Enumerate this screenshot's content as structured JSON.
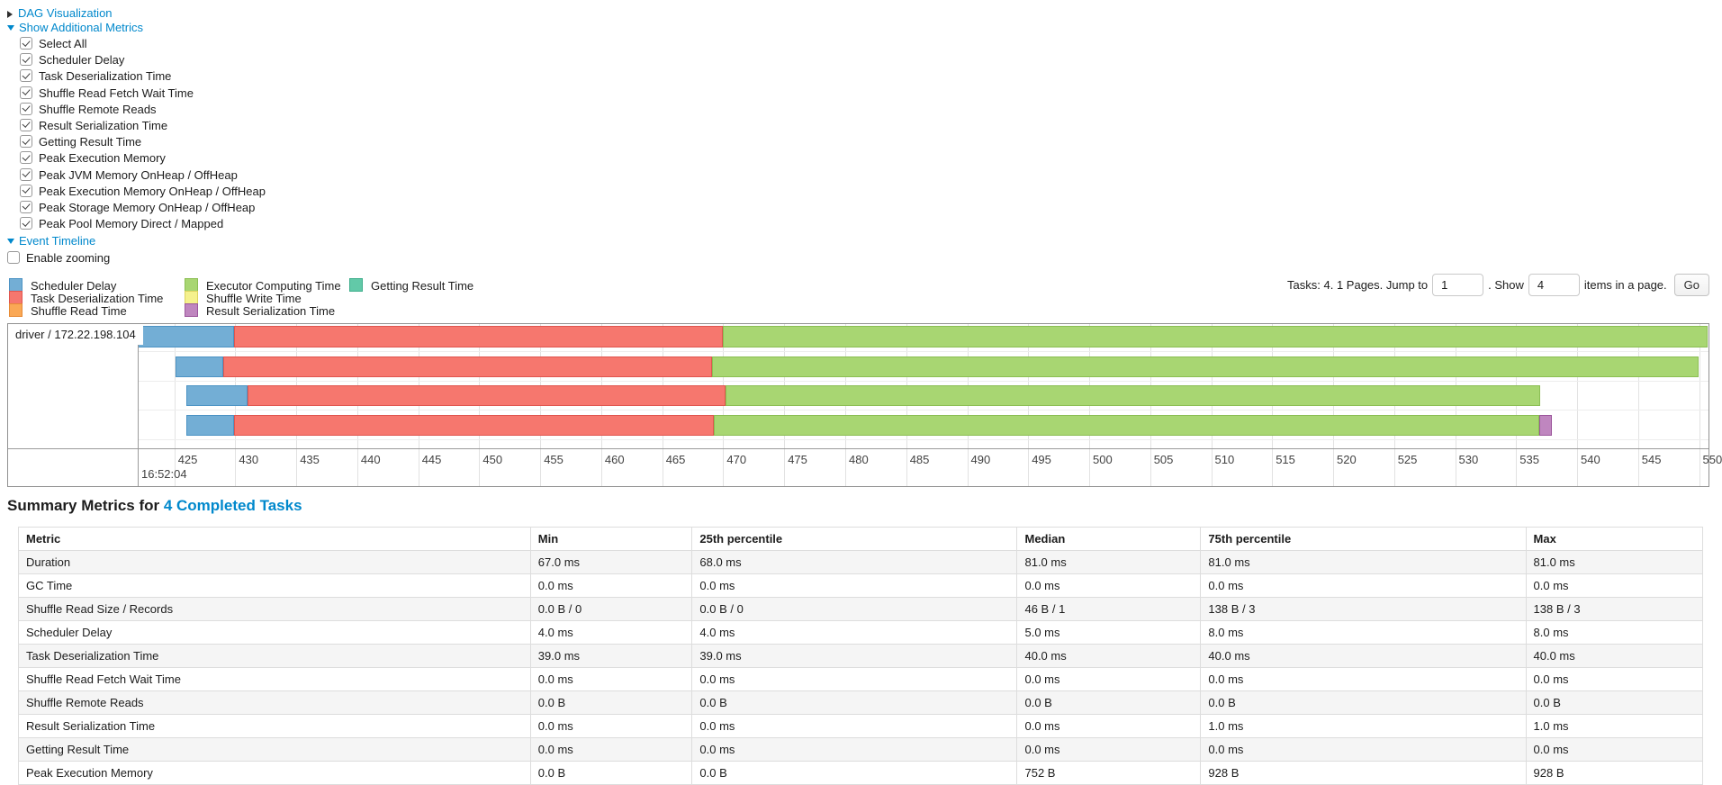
{
  "sections": {
    "dag_visualization": {
      "label": "DAG Visualization",
      "collapsed": true
    },
    "show_additional_metrics": {
      "label": "Show Additional Metrics",
      "collapsed": false
    },
    "event_timeline": {
      "label": "Event Timeline",
      "collapsed": false
    }
  },
  "metric_checkboxes": [
    {
      "label": "Select All",
      "checked": true
    },
    {
      "label": "Scheduler Delay",
      "checked": true
    },
    {
      "label": "Task Deserialization Time",
      "checked": true
    },
    {
      "label": "Shuffle Read Fetch Wait Time",
      "checked": true
    },
    {
      "label": "Shuffle Remote Reads",
      "checked": true
    },
    {
      "label": "Result Serialization Time",
      "checked": true
    },
    {
      "label": "Getting Result Time",
      "checked": true
    },
    {
      "label": "Peak Execution Memory",
      "checked": true
    },
    {
      "label": "Peak JVM Memory OnHeap / OffHeap",
      "checked": true
    },
    {
      "label": "Peak Execution Memory OnHeap / OffHeap",
      "checked": true
    },
    {
      "label": "Peak Storage Memory OnHeap / OffHeap",
      "checked": true
    },
    {
      "label": "Peak Pool Memory Direct / Mapped",
      "checked": true
    }
  ],
  "enable_zooming": {
    "label": "Enable zooming",
    "checked": false
  },
  "colors": {
    "scheduler_delay": {
      "fill": "#73AED5",
      "stroke": "#4C93C4",
      "label": "Scheduler Delay"
    },
    "task_deserialization": {
      "fill": "#F6776E",
      "stroke": "#E0554E",
      "label": "Task Deserialization Time"
    },
    "shuffle_read": {
      "fill": "#FAA855",
      "stroke": "#E68A35",
      "label": "Shuffle Read Time"
    },
    "executor_computing": {
      "fill": "#A8D672",
      "stroke": "#8BBE53",
      "label": "Executor Computing Time"
    },
    "shuffle_write": {
      "fill": "#F5F18D",
      "stroke": "#DCD35E",
      "label": "Shuffle Write Time"
    },
    "result_serialization": {
      "fill": "#BF86BF",
      "stroke": "#9C579C",
      "label": "Result Serialization Time"
    },
    "getting_result": {
      "fill": "#62C9A8",
      "stroke": "#3FAE8C",
      "label": "Getting Result Time"
    }
  },
  "legend": {
    "columns": [
      [
        "scheduler_delay",
        "task_deserialization",
        "shuffle_read"
      ],
      [
        "executor_computing",
        "shuffle_write",
        "result_serialization"
      ],
      [
        "getting_result"
      ]
    ]
  },
  "pager": {
    "summary": "Tasks: 4. 1 Pages. Jump to",
    "jump_value": "1",
    "show_label": ". Show",
    "show_value": "4",
    "suffix": "items in a page.",
    "go": "Go"
  },
  "chart_data": {
    "type": "timeline",
    "group_label": "driver / 172.22.198.104",
    "axis": {
      "major_label": "16:52:04",
      "unit": "ms",
      "tick_min": 425,
      "tick_max": 550,
      "tick_step": 5,
      "domain_min": 422.0,
      "domain_max": 550.7
    },
    "tasks": [
      {
        "segments": [
          {
            "metric": "scheduler_delay",
            "start": 422.0,
            "end": 429.9
          },
          {
            "metric": "task_deserialization",
            "start": 429.9,
            "end": 470.0
          },
          {
            "metric": "executor_computing",
            "start": 470.0,
            "end": 550.7
          }
        ]
      },
      {
        "segments": [
          {
            "metric": "scheduler_delay",
            "start": 425.1,
            "end": 429.0
          },
          {
            "metric": "task_deserialization",
            "start": 429.0,
            "end": 469.1
          },
          {
            "metric": "executor_computing",
            "start": 469.1,
            "end": 550.0
          }
        ]
      },
      {
        "segments": [
          {
            "metric": "scheduler_delay",
            "start": 426.0,
            "end": 431.0
          },
          {
            "metric": "task_deserialization",
            "start": 431.0,
            "end": 470.2
          },
          {
            "metric": "executor_computing",
            "start": 470.2,
            "end": 537.0
          }
        ]
      },
      {
        "segments": [
          {
            "metric": "scheduler_delay",
            "start": 426.0,
            "end": 429.9
          },
          {
            "metric": "task_deserialization",
            "start": 429.9,
            "end": 469.2
          },
          {
            "metric": "executor_computing",
            "start": 469.2,
            "end": 536.9
          },
          {
            "metric": "result_serialization",
            "start": 536.9,
            "end": 537.9
          }
        ]
      }
    ]
  },
  "summary": {
    "heading_prefix": "Summary Metrics for ",
    "heading_link": "4 Completed Tasks",
    "headers": [
      "Metric",
      "Min",
      "25th percentile",
      "Median",
      "75th percentile",
      "Max"
    ],
    "rows": [
      [
        "Duration",
        "67.0 ms",
        "68.0 ms",
        "81.0 ms",
        "81.0 ms",
        "81.0 ms"
      ],
      [
        "GC Time",
        "0.0 ms",
        "0.0 ms",
        "0.0 ms",
        "0.0 ms",
        "0.0 ms"
      ],
      [
        "Shuffle Read Size / Records",
        "0.0 B / 0",
        "0.0 B / 0",
        "46 B / 1",
        "138 B / 3",
        "138 B / 3"
      ],
      [
        "Scheduler Delay",
        "4.0 ms",
        "4.0 ms",
        "5.0 ms",
        "8.0 ms",
        "8.0 ms"
      ],
      [
        "Task Deserialization Time",
        "39.0 ms",
        "39.0 ms",
        "40.0 ms",
        "40.0 ms",
        "40.0 ms"
      ],
      [
        "Shuffle Read Fetch Wait Time",
        "0.0 ms",
        "0.0 ms",
        "0.0 ms",
        "0.0 ms",
        "0.0 ms"
      ],
      [
        "Shuffle Remote Reads",
        "0.0 B",
        "0.0 B",
        "0.0 B",
        "0.0 B",
        "0.0 B"
      ],
      [
        "Result Serialization Time",
        "0.0 ms",
        "0.0 ms",
        "0.0 ms",
        "1.0 ms",
        "1.0 ms"
      ],
      [
        "Getting Result Time",
        "0.0 ms",
        "0.0 ms",
        "0.0 ms",
        "0.0 ms",
        "0.0 ms"
      ],
      [
        "Peak Execution Memory",
        "0.0 B",
        "0.0 B",
        "752 B",
        "928 B",
        "928 B"
      ]
    ]
  }
}
